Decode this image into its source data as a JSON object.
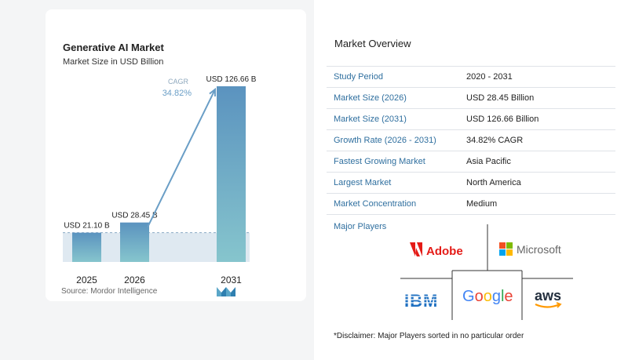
{
  "chart_data": {
    "type": "bar",
    "title": "Generative AI Market",
    "subtitle": "Market Size in USD Billion",
    "categories": [
      "2025",
      "2026",
      "2031"
    ],
    "values": [
      21.1,
      28.45,
      126.66
    ],
    "value_labels": [
      "USD 21.10 B",
      "USD 28.45 B",
      "USD 126.66 B"
    ],
    "cagr_label": "CAGR",
    "cagr_value": "34.82%",
    "ylim": [
      0,
      126.66
    ],
    "colors": {
      "bar_top": "#5b93bf",
      "bar_bottom": "#86c5cd",
      "band": "#dfe9f1",
      "arrow": "#6a9ec6",
      "cagr_text": "#6a9ec6"
    },
    "source": "Source: Mordor Intelligence"
  },
  "overview": {
    "title": "Market Overview",
    "rows": [
      {
        "label": "Study Period",
        "value": "2020 - 2031"
      },
      {
        "label": "Market Size (2026)",
        "value": "USD 28.45 Billion"
      },
      {
        "label": "Market Size (2031)",
        "value": "USD 126.66 Billion"
      },
      {
        "label": "Growth Rate (2026 - 2031)",
        "value": "34.82% CAGR"
      },
      {
        "label": "Fastest Growing Market",
        "value": "Asia Pacific"
      },
      {
        "label": "Largest Market",
        "value": "North America"
      },
      {
        "label": "Market Concentration",
        "value": "Medium"
      }
    ],
    "players_label": "Major Players",
    "players": [
      "Adobe",
      "Microsoft",
      "IBM",
      "Google",
      "aws"
    ],
    "disclaimer": "*Disclaimer: Major Players sorted in no particular order"
  }
}
